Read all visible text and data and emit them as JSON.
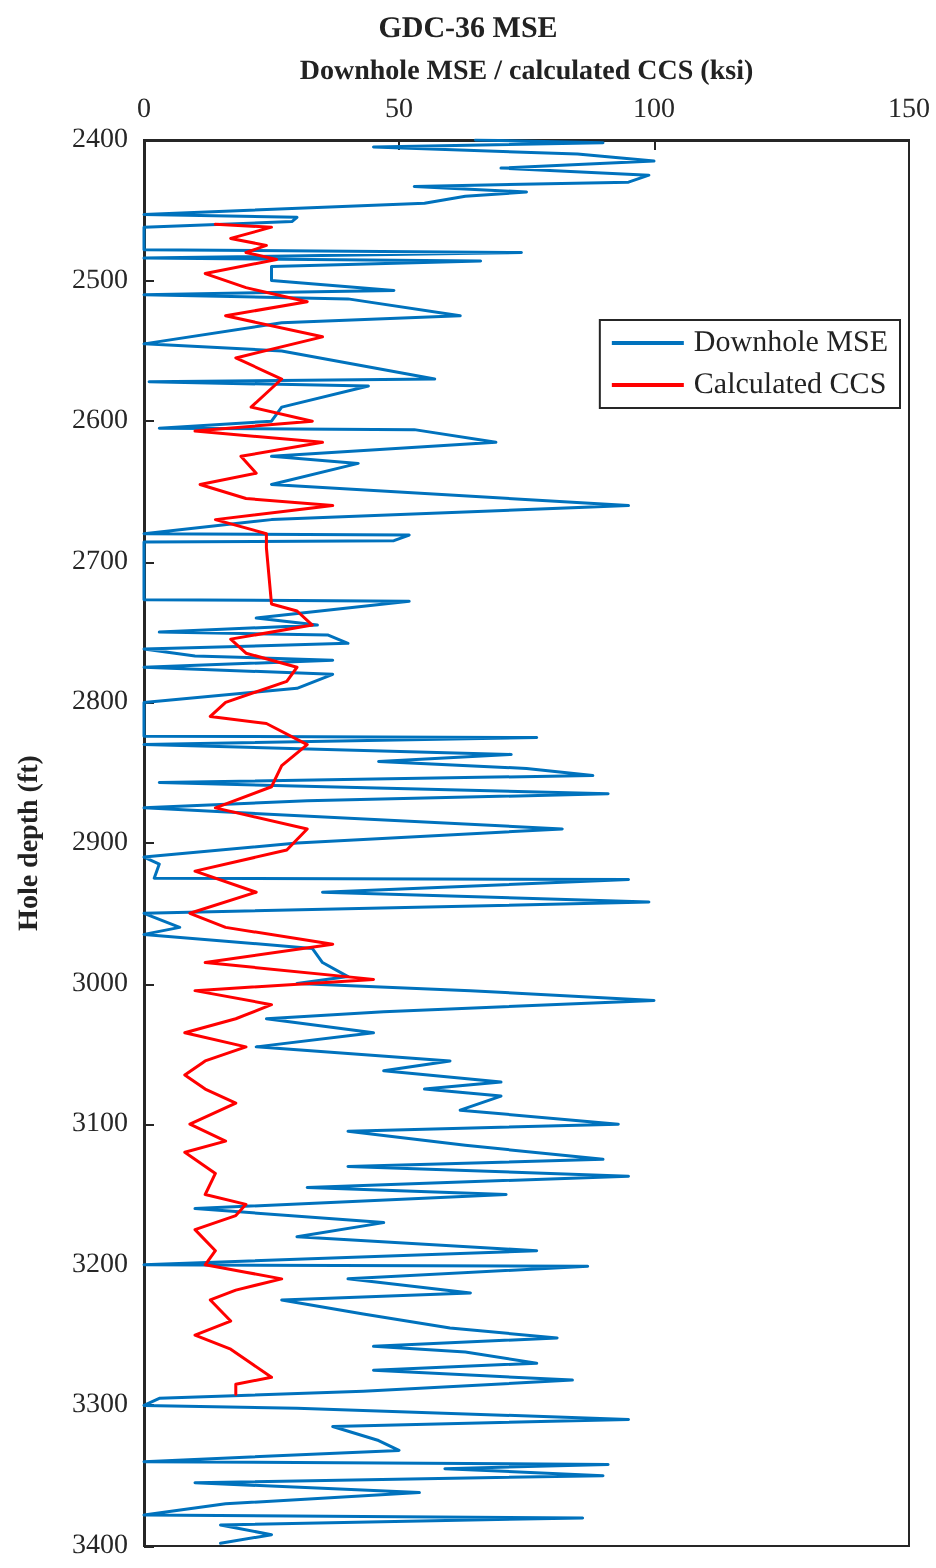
{
  "chart_data": {
    "type": "line",
    "title": "GDC-36 MSE",
    "xlabel": "Downhole MSE / calculated CCS (ksi)",
    "ylabel": "Hole depth (ft)",
    "xlim": [
      0,
      150
    ],
    "xticks": [
      0,
      50,
      100,
      150
    ],
    "ylim": [
      3400,
      2400
    ],
    "yticks": [
      2400,
      2500,
      2600,
      2700,
      2800,
      2900,
      3000,
      3100,
      3200,
      3300,
      3400
    ],
    "legend": "right",
    "grid": false,
    "marker": "none",
    "line_style": "solid",
    "series": [
      {
        "name": "Downhole MSE",
        "color": "#0072bd",
        "x": [
          65,
          90,
          45,
          85,
          100,
          70,
          99,
          95,
          53,
          75,
          63,
          55,
          0,
          30,
          29,
          0,
          0,
          74,
          0,
          66,
          25,
          25,
          49,
          0,
          40,
          62,
          27,
          0,
          27,
          57,
          1,
          44,
          27,
          25,
          3,
          53,
          69,
          25,
          42,
          25,
          95,
          25,
          0,
          52,
          49,
          0,
          0,
          52,
          22,
          34,
          3,
          36,
          40,
          0,
          10,
          37,
          0,
          37,
          30,
          0,
          0,
          77,
          0,
          72,
          46,
          75,
          88,
          3,
          91,
          32,
          0,
          82,
          30,
          0,
          3,
          2,
          95,
          35,
          99,
          0,
          7,
          0,
          33,
          35,
          40,
          30,
          64,
          100,
          47,
          24,
          45,
          22,
          60,
          47,
          70,
          55,
          70,
          62,
          93,
          40,
          63,
          90,
          40,
          95,
          32,
          71,
          10,
          47,
          30,
          77,
          0,
          87,
          40,
          64,
          27,
          43,
          60,
          81,
          45,
          63,
          77,
          45,
          84,
          43,
          3,
          0,
          30,
          95,
          37,
          46,
          50,
          0,
          91,
          59,
          90,
          10,
          54,
          16,
          0,
          86,
          15,
          25,
          15
        ],
        "values": [
          2400,
          2402,
          2405,
          2410,
          2415,
          2420,
          2425,
          2430,
          2433,
          2437,
          2440,
          2445,
          2453,
          2455,
          2458,
          2462,
          2478,
          2480,
          2484,
          2486,
          2490,
          2500,
          2507,
          2510,
          2513,
          2525,
          2530,
          2545,
          2550,
          2570,
          2572,
          2575,
          2590,
          2600,
          2605,
          2606,
          2615,
          2625,
          2630,
          2645,
          2660,
          2670,
          2680,
          2681,
          2685,
          2686,
          2727,
          2728,
          2740,
          2745,
          2750,
          2752,
          2758,
          2762,
          2767,
          2770,
          2775,
          2780,
          2790,
          2800,
          2824,
          2825,
          2830,
          2837,
          2842,
          2847,
          2852,
          2857,
          2865,
          2870,
          2875,
          2890,
          2900,
          2910,
          2915,
          2925,
          2926,
          2935,
          2942,
          2950,
          2960,
          2965,
          2975,
          2985,
          2995,
          3000,
          3005,
          3012,
          3020,
          3025,
          3035,
          3045,
          3055,
          3062,
          3070,
          3075,
          3080,
          3090,
          3100,
          3105,
          3115,
          3125,
          3130,
          3137,
          3145,
          3150,
          3160,
          3170,
          3180,
          3190,
          3200,
          3201,
          3210,
          3220,
          3225,
          3235,
          3245,
          3252,
          3258,
          3262,
          3270,
          3275,
          3282,
          3290,
          3295,
          3300,
          3302,
          3310,
          3315,
          3325,
          3332,
          3340,
          3342,
          3345,
          3350,
          3355,
          3362,
          3370,
          3378,
          3380,
          3385,
          3392,
          3398
        ]
      },
      {
        "name": "Calculated CCS",
        "color": "#ff0000",
        "x": [
          14,
          25,
          17,
          24,
          20,
          26,
          12,
          20,
          32,
          16,
          35,
          18,
          27,
          21,
          33,
          10,
          35,
          19,
          22,
          11,
          20,
          37,
          14,
          24,
          24,
          25,
          30,
          33,
          17,
          20,
          30,
          28,
          16,
          13,
          24,
          32,
          27,
          25,
          14,
          32,
          28,
          10,
          22,
          9,
          16,
          37,
          12,
          45,
          10,
          25,
          18,
          8,
          20,
          12,
          8,
          12,
          18,
          9,
          16,
          8,
          14,
          12,
          20,
          18,
          10,
          14,
          12,
          27,
          18,
          13,
          17,
          10,
          17,
          21,
          25,
          18,
          18
        ],
        "values": [
          2460,
          2462,
          2470,
          2475,
          2480,
          2485,
          2495,
          2505,
          2515,
          2525,
          2540,
          2555,
          2570,
          2590,
          2600,
          2607,
          2615,
          2625,
          2637,
          2645,
          2655,
          2660,
          2670,
          2680,
          2690,
          2730,
          2735,
          2745,
          2755,
          2765,
          2775,
          2785,
          2800,
          2810,
          2815,
          2830,
          2845,
          2860,
          2875,
          2890,
          2905,
          2920,
          2935,
          2950,
          2960,
          2972,
          2985,
          2997,
          3005,
          3015,
          3025,
          3035,
          3045,
          3055,
          3065,
          3075,
          3085,
          3100,
          3112,
          3120,
          3135,
          3150,
          3157,
          3165,
          3175,
          3190,
          3200,
          3210,
          3218,
          3225,
          3240,
          3250,
          3260,
          3270,
          3280,
          3285,
          3292
        ]
      }
    ]
  }
}
